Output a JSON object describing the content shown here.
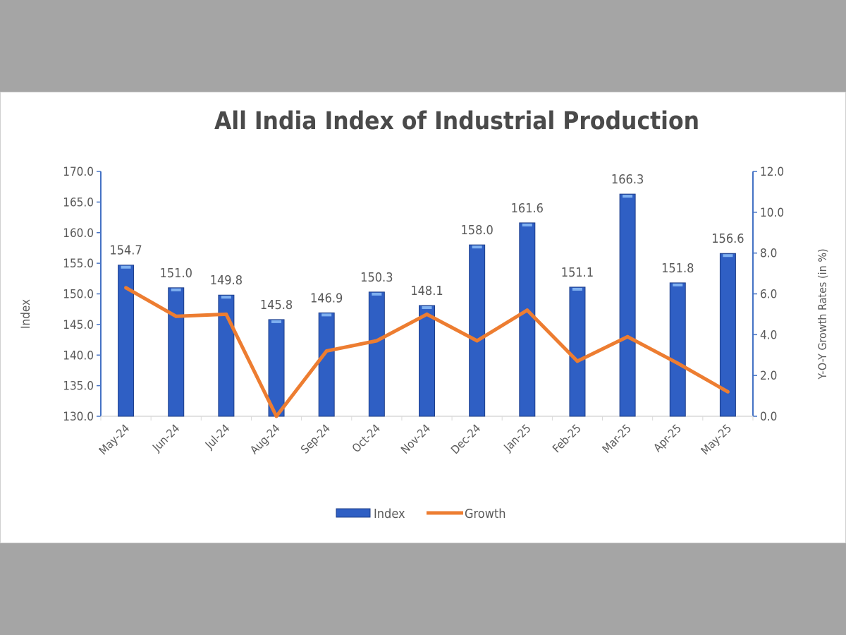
{
  "chart_data": {
    "type": "bar+line",
    "title": "All India Index of Industrial Production",
    "categories": [
      "May-24",
      "Jun-24",
      "Jul-24",
      "Aug-24",
      "Sep-24",
      "Oct-24",
      "Nov-24",
      "Dec-24",
      "Jan-25",
      "Feb-25",
      "Mar-25",
      "Apr-25",
      "May-25"
    ],
    "series": [
      {
        "name": "Index",
        "type": "bar",
        "axis": "left",
        "color": "#2f5fc4",
        "values": [
          154.7,
          151.0,
          149.8,
          145.8,
          146.9,
          150.3,
          148.1,
          158.0,
          161.6,
          151.1,
          166.3,
          151.8,
          156.6
        ]
      },
      {
        "name": "Growth",
        "type": "line",
        "axis": "right",
        "color": "#ed7d31",
        "values": [
          6.3,
          4.9,
          5.0,
          0.0,
          3.2,
          3.7,
          5.0,
          3.7,
          5.2,
          2.7,
          3.9,
          2.6,
          1.2
        ]
      }
    ],
    "ylabel": "Index",
    "y2label": "Y-O-Y Growth Rates (in %)",
    "ylim": [
      130,
      170
    ],
    "y2lim": [
      0,
      12
    ],
    "yticks": [
      "130.0",
      "135.0",
      "140.0",
      "145.0",
      "150.0",
      "155.0",
      "160.0",
      "165.0",
      "170.0"
    ],
    "y2ticks": [
      "0.0",
      "2.0",
      "4.0",
      "6.0",
      "8.0",
      "10.0",
      "12.0"
    ],
    "grid": false,
    "legend": "bottom",
    "axis_color": "#4472c4"
  }
}
